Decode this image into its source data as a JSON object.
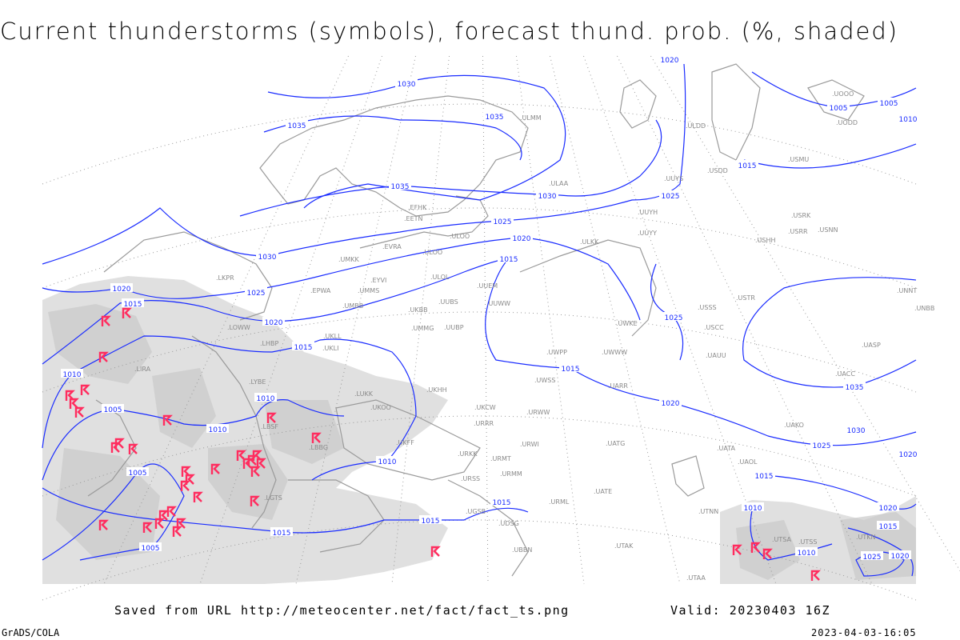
{
  "title": "Current thunderstorms (symbols), forecast thund. prob. (%, shaded)",
  "footer": {
    "saved_from": "Saved from URL http://meteocenter.net/fact/fact_ts.png",
    "valid": "Valid: 20230403 16Z",
    "software": "GrADS/COLA",
    "timestamp": "2023-04-03-16:05"
  },
  "colors": {
    "isobar": "#1a2cff",
    "thunderstorm_symbol": "#ff2d5f",
    "shading_light": "#e0e0e0",
    "shading_dark": "#c9c9c9",
    "coastline": "#9a9a9a"
  },
  "isobar_labels": [
    "1030",
    "1035",
    "1035",
    "1035",
    "1030",
    "1025",
    "1020",
    "1015",
    "1030",
    "1025",
    "1020",
    "1015",
    "1020",
    "1015",
    "1010",
    "1005",
    "1010",
    "1010",
    "1010",
    "1005",
    "1015",
    "1015",
    "1015",
    "1005",
    "1015",
    "1020",
    "1025",
    "1020",
    "1025",
    "1015",
    "1025",
    "1030",
    "1035",
    "1005",
    "1005",
    "1010",
    "1010",
    "1010",
    "1020",
    "1015",
    "1020",
    "1015",
    "1025",
    "1020"
  ],
  "station_labels": [
    "ULMM",
    "ULOO",
    "ULAA",
    "EFHK",
    "EETN",
    "EVRA",
    "ULOO",
    "ULOL",
    "UMKK",
    "EYVI",
    "UMMS",
    "EPWA",
    "UMBB",
    "UUEM",
    "UUWW",
    "UUBS",
    "UKBB",
    "UKLL",
    "UKLI",
    "LKPR",
    "LOWW",
    "LHBP",
    "LIRA",
    "LYBE",
    "LBSF",
    "LBBG",
    "LGTS",
    "LUKK",
    "UKOO",
    "UKFF",
    "URKK",
    "URSS",
    "UGSB",
    "UDSG",
    "UBBN",
    "UTAK",
    "URWW",
    "UWWW",
    "UWKE",
    "UWPP",
    "UWSS",
    "UARR",
    "URMT",
    "URMM",
    "URML",
    "UATE",
    "UATG",
    "UTNN",
    "UTAA",
    "UAKO",
    "UACC",
    "UASP",
    "UNNT",
    "UNBB",
    "USTR",
    "USSS",
    "USCC",
    "UAUU",
    "USRR",
    "USNN",
    "USHH",
    "USRK",
    "USMU",
    "USDD",
    "UOOO",
    "UODD",
    "ULDD",
    "UUYY",
    "UUYH",
    "ULKK",
    "UUYS",
    "UUBP",
    "UMMG",
    "UKHH",
    "UKCW",
    "URRR",
    "URWI",
    "UTSA",
    "UTSS",
    "UTKN",
    "UAOL",
    "UATA"
  ],
  "symbol_type": "thunderstorm-symbol"
}
